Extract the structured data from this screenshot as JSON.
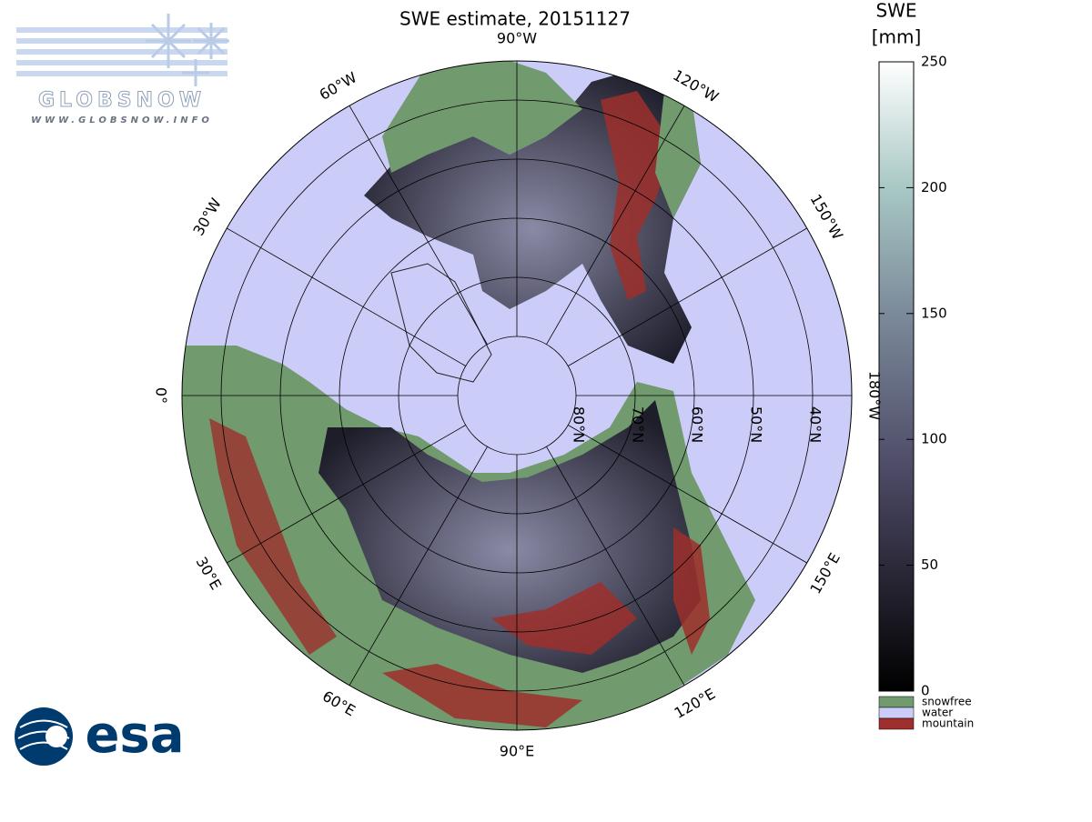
{
  "title": "SWE estimate, 20151127",
  "map": {
    "longitude_labels": [
      {
        "value": -90,
        "label": "90°W"
      },
      {
        "value": -60,
        "label": "60°W"
      },
      {
        "value": -30,
        "label": "30°W"
      },
      {
        "value": 0,
        "label": "0°"
      },
      {
        "value": 30,
        "label": "30°E"
      },
      {
        "value": 60,
        "label": "60°E"
      },
      {
        "value": 90,
        "label": "90°E"
      },
      {
        "value": 120,
        "label": "120°E"
      },
      {
        "value": 150,
        "label": "150°E"
      },
      {
        "value": 180,
        "label": "180°W"
      },
      {
        "value": -150,
        "label": "150°W"
      },
      {
        "value": -120,
        "label": "120°W"
      }
    ],
    "latitude_labels": [
      {
        "value": 80,
        "label": "80°N"
      },
      {
        "value": 70,
        "label": "70°N"
      },
      {
        "value": 60,
        "label": "60°N"
      },
      {
        "value": 50,
        "label": "50°N"
      },
      {
        "value": 40,
        "label": "40°N"
      }
    ]
  },
  "colorbar": {
    "title": [
      "SWE",
      "[mm]"
    ],
    "range": [
      0,
      250
    ],
    "ticks": [
      0,
      50,
      100,
      150,
      200,
      250
    ],
    "categories": [
      {
        "name": "snowfree",
        "color": "#719a6f"
      },
      {
        "name": "water",
        "color": "#ccccf8"
      },
      {
        "name": "mountain",
        "color": "#9e2f2c"
      }
    ]
  },
  "logos": {
    "globsnow": "GLOBSNOW",
    "url": "WWW.GLOBSNOW.INFO",
    "esa": "esa"
  }
}
